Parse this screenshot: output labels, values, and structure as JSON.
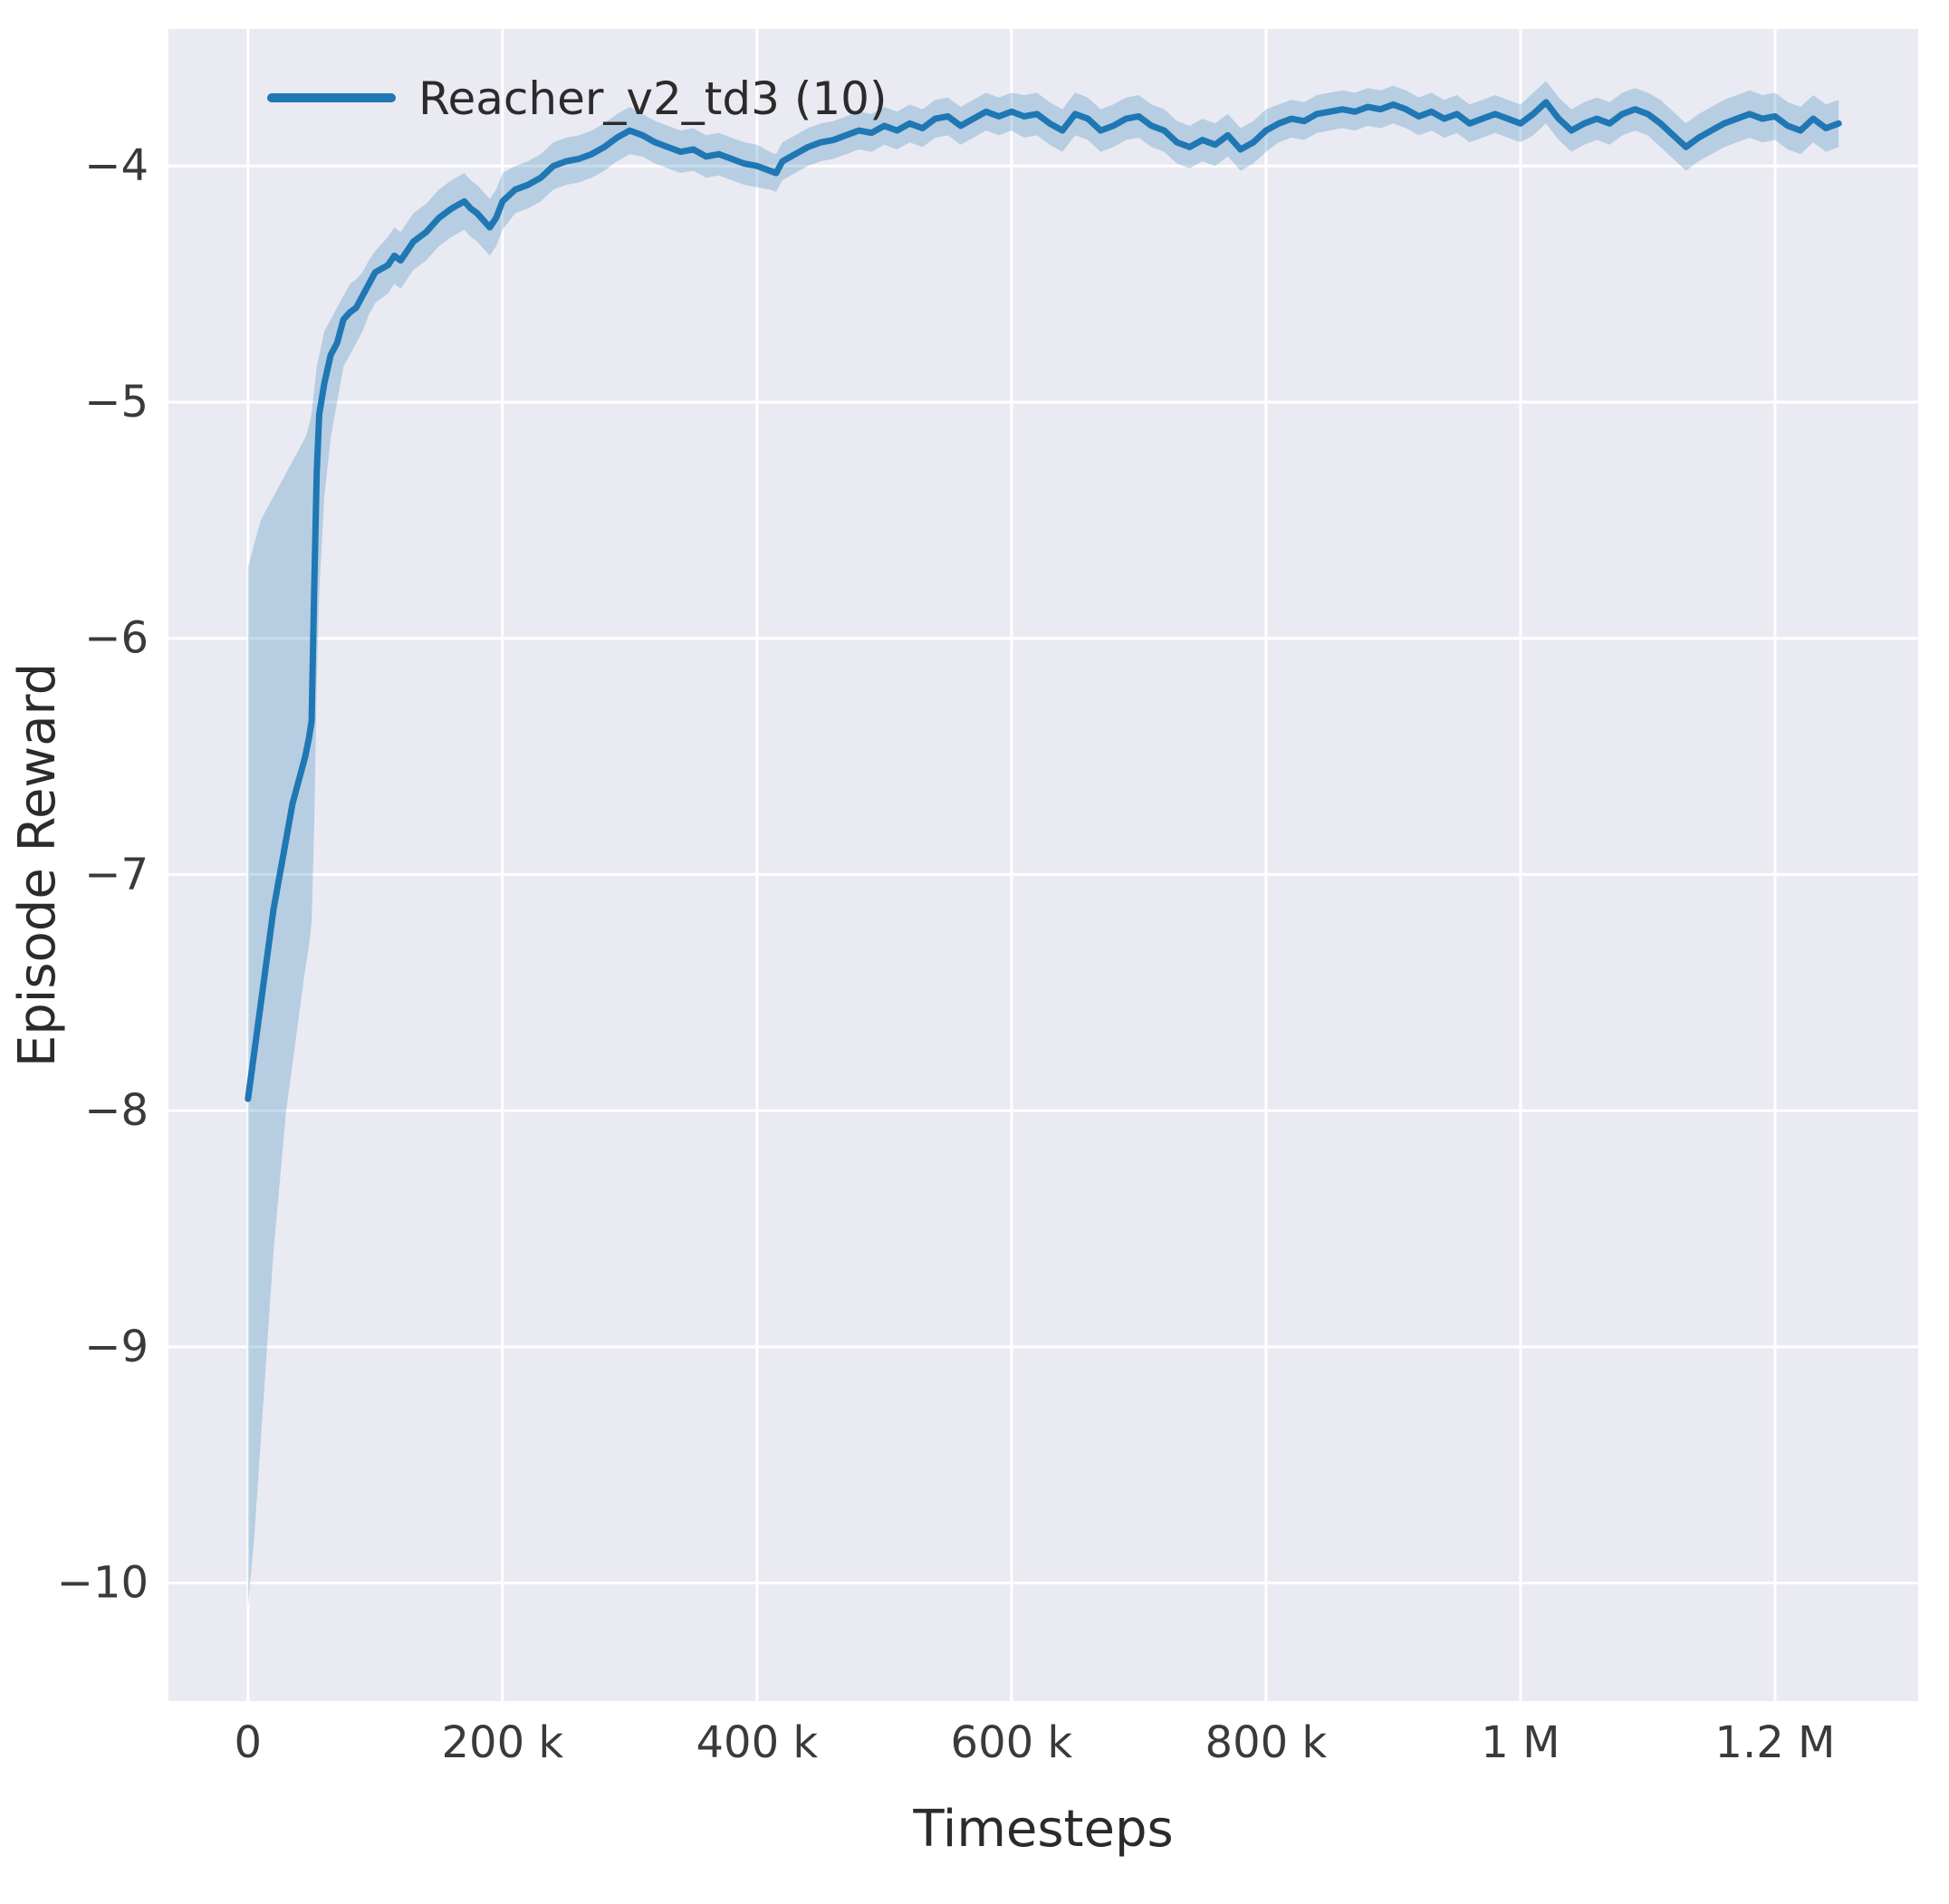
{
  "figure": {
    "background": "#ffffff",
    "axes_background": "#eaeaf2",
    "grid_color": "#ffffff",
    "text_color": "#2b2b2b",
    "band_opacity": 0.25
  },
  "chart_data": {
    "type": "line",
    "title": "",
    "xlabel": "Timesteps",
    "ylabel": "Episode Reward",
    "grid": true,
    "legend_position": "upper left",
    "x_units": "timesteps (thousands)",
    "xlim": [
      -62.5,
      1312.5
    ],
    "ylim": [
      -10.5,
      -3.42
    ],
    "x_ticks": [
      0,
      200,
      400,
      600,
      800,
      1000,
      1200
    ],
    "x_tick_labels": [
      "0",
      "200 k",
      "400 k",
      "600 k",
      "800 k",
      "1 M",
      "1.2 M"
    ],
    "y_ticks": [
      -10,
      -9,
      -8,
      -7,
      -6,
      -5,
      -4
    ],
    "y_tick_labels": [
      "−10",
      "−9",
      "−8",
      "−7",
      "−6",
      "−5",
      "−4"
    ],
    "series": [
      {
        "name": "Reacher_v2_td3 (10)",
        "color": "#1f77b4",
        "x": [
          0,
          5,
          10,
          15,
          20,
          25,
          30,
          35,
          40,
          45,
          48,
          50,
          52,
          54,
          56,
          60,
          65,
          70,
          75,
          80,
          85,
          90,
          95,
          100,
          110,
          115,
          120,
          130,
          140,
          150,
          160,
          170,
          175,
          180,
          190,
          195,
          200,
          210,
          220,
          230,
          240,
          250,
          260,
          270,
          280,
          290,
          300,
          310,
          320,
          330,
          340,
          350,
          360,
          370,
          380,
          390,
          400,
          410,
          415,
          420,
          430,
          440,
          450,
          460,
          470,
          480,
          490,
          500,
          510,
          520,
          530,
          540,
          550,
          560,
          570,
          580,
          590,
          600,
          610,
          620,
          630,
          640,
          650,
          660,
          670,
          680,
          690,
          700,
          710,
          720,
          730,
          740,
          750,
          760,
          770,
          780,
          790,
          800,
          810,
          820,
          830,
          840,
          850,
          860,
          870,
          880,
          890,
          900,
          910,
          920,
          930,
          940,
          950,
          960,
          970,
          980,
          990,
          1000,
          1010,
          1020,
          1030,
          1040,
          1050,
          1060,
          1070,
          1080,
          1090,
          1100,
          1110,
          1120,
          1130,
          1140,
          1150,
          1160,
          1170,
          1180,
          1190,
          1200,
          1210,
          1220,
          1230,
          1240,
          1250
        ],
        "mean": [
          -7.95,
          -7.75,
          -7.55,
          -7.35,
          -7.15,
          -7.0,
          -6.85,
          -6.7,
          -6.6,
          -6.5,
          -6.42,
          -6.35,
          -5.8,
          -5.3,
          -5.05,
          -4.92,
          -4.8,
          -4.75,
          -4.65,
          -4.62,
          -4.6,
          -4.55,
          -4.5,
          -4.45,
          -4.42,
          -4.38,
          -4.4,
          -4.32,
          -4.28,
          -4.22,
          -4.18,
          -4.15,
          -4.18,
          -4.2,
          -4.26,
          -4.22,
          -4.15,
          -4.1,
          -4.08,
          -4.05,
          -4.0,
          -3.98,
          -3.97,
          -3.95,
          -3.92,
          -3.88,
          -3.85,
          -3.87,
          -3.9,
          -3.92,
          -3.94,
          -3.93,
          -3.96,
          -3.95,
          -3.97,
          -3.99,
          -4.0,
          -4.02,
          -4.03,
          -3.98,
          -3.95,
          -3.92,
          -3.9,
          -3.89,
          -3.87,
          -3.85,
          -3.86,
          -3.83,
          -3.85,
          -3.82,
          -3.84,
          -3.8,
          -3.79,
          -3.83,
          -3.8,
          -3.77,
          -3.79,
          -3.77,
          -3.79,
          -3.78,
          -3.82,
          -3.85,
          -3.78,
          -3.8,
          -3.85,
          -3.83,
          -3.8,
          -3.79,
          -3.83,
          -3.85,
          -3.9,
          -3.92,
          -3.89,
          -3.91,
          -3.87,
          -3.93,
          -3.9,
          -3.85,
          -3.82,
          -3.8,
          -3.81,
          -3.78,
          -3.77,
          -3.76,
          -3.77,
          -3.75,
          -3.76,
          -3.74,
          -3.76,
          -3.79,
          -3.77,
          -3.8,
          -3.78,
          -3.82,
          -3.8,
          -3.78,
          -3.8,
          -3.82,
          -3.78,
          -3.73,
          -3.8,
          -3.85,
          -3.82,
          -3.8,
          -3.82,
          -3.78,
          -3.76,
          -3.78,
          -3.82,
          -3.87,
          -3.92,
          -3.88,
          -3.85,
          -3.82,
          -3.8,
          -3.78,
          -3.8,
          -3.79,
          -3.83,
          -3.85,
          -3.8,
          -3.84,
          -3.82
        ],
        "lower": [
          -10.1,
          -9.8,
          -9.4,
          -9.0,
          -8.6,
          -8.3,
          -8.0,
          -7.8,
          -7.6,
          -7.4,
          -7.3,
          -7.2,
          -6.8,
          -6.2,
          -5.8,
          -5.4,
          -5.15,
          -5.0,
          -4.85,
          -4.8,
          -4.75,
          -4.7,
          -4.63,
          -4.58,
          -4.54,
          -4.5,
          -4.52,
          -4.44,
          -4.4,
          -4.34,
          -4.3,
          -4.27,
          -4.3,
          -4.32,
          -4.38,
          -4.34,
          -4.27,
          -4.2,
          -4.18,
          -4.15,
          -4.1,
          -4.08,
          -4.07,
          -4.05,
          -4.02,
          -3.98,
          -3.95,
          -3.96,
          -3.99,
          -4.01,
          -4.03,
          -4.02,
          -4.05,
          -4.04,
          -4.06,
          -4.08,
          -4.09,
          -4.1,
          -4.11,
          -4.06,
          -4.03,
          -4.0,
          -3.98,
          -3.97,
          -3.95,
          -3.93,
          -3.94,
          -3.91,
          -3.93,
          -3.9,
          -3.92,
          -3.88,
          -3.87,
          -3.91,
          -3.88,
          -3.85,
          -3.87,
          -3.85,
          -3.88,
          -3.87,
          -3.91,
          -3.94,
          -3.87,
          -3.89,
          -3.94,
          -3.92,
          -3.89,
          -3.88,
          -3.92,
          -3.94,
          -3.99,
          -4.01,
          -3.98,
          -4.0,
          -3.96,
          -4.02,
          -3.99,
          -3.94,
          -3.9,
          -3.88,
          -3.89,
          -3.86,
          -3.85,
          -3.84,
          -3.85,
          -3.83,
          -3.84,
          -3.82,
          -3.84,
          -3.87,
          -3.85,
          -3.88,
          -3.86,
          -3.9,
          -3.88,
          -3.86,
          -3.88,
          -3.9,
          -3.87,
          -3.82,
          -3.89,
          -3.94,
          -3.91,
          -3.89,
          -3.91,
          -3.87,
          -3.85,
          -3.87,
          -3.92,
          -3.97,
          -4.02,
          -3.98,
          -3.95,
          -3.92,
          -3.9,
          -3.88,
          -3.9,
          -3.89,
          -3.93,
          -3.95,
          -3.9,
          -3.94,
          -3.92
        ],
        "upper": [
          -5.7,
          -5.6,
          -5.5,
          -5.45,
          -5.4,
          -5.35,
          -5.3,
          -5.25,
          -5.2,
          -5.15,
          -5.1,
          -5.05,
          -4.95,
          -4.85,
          -4.8,
          -4.7,
          -4.65,
          -4.6,
          -4.55,
          -4.5,
          -4.48,
          -4.45,
          -4.4,
          -4.36,
          -4.3,
          -4.26,
          -4.28,
          -4.2,
          -4.16,
          -4.1,
          -4.06,
          -4.03,
          -4.06,
          -4.08,
          -4.14,
          -4.1,
          -4.03,
          -4.0,
          -3.98,
          -3.95,
          -3.9,
          -3.88,
          -3.87,
          -3.85,
          -3.82,
          -3.78,
          -3.75,
          -3.78,
          -3.81,
          -3.83,
          -3.85,
          -3.84,
          -3.87,
          -3.86,
          -3.88,
          -3.9,
          -3.91,
          -3.94,
          -3.95,
          -3.9,
          -3.87,
          -3.84,
          -3.82,
          -3.81,
          -3.79,
          -3.77,
          -3.78,
          -3.75,
          -3.77,
          -3.74,
          -3.76,
          -3.72,
          -3.71,
          -3.75,
          -3.72,
          -3.69,
          -3.71,
          -3.69,
          -3.7,
          -3.69,
          -3.73,
          -3.76,
          -3.69,
          -3.71,
          -3.76,
          -3.74,
          -3.71,
          -3.7,
          -3.74,
          -3.76,
          -3.81,
          -3.83,
          -3.8,
          -3.82,
          -3.78,
          -3.84,
          -3.81,
          -3.76,
          -3.74,
          -3.72,
          -3.73,
          -3.7,
          -3.69,
          -3.68,
          -3.69,
          -3.67,
          -3.68,
          -3.66,
          -3.68,
          -3.71,
          -3.69,
          -3.72,
          -3.7,
          -3.74,
          -3.72,
          -3.7,
          -3.72,
          -3.74,
          -3.69,
          -3.64,
          -3.71,
          -3.76,
          -3.73,
          -3.71,
          -3.73,
          -3.69,
          -3.67,
          -3.69,
          -3.72,
          -3.77,
          -3.82,
          -3.78,
          -3.75,
          -3.72,
          -3.7,
          -3.68,
          -3.7,
          -3.69,
          -3.73,
          -3.75,
          -3.7,
          -3.74,
          -3.72
        ]
      }
    ]
  }
}
